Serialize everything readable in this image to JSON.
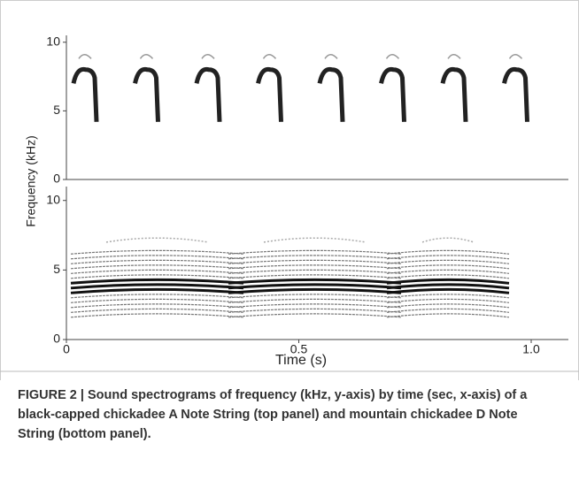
{
  "chart_data": [
    {
      "type": "spectrogram",
      "ylabel": "Frequency (kHz)",
      "ylim": [
        0,
        10.5
      ],
      "yticks": [
        0,
        5,
        10
      ]
    },
    {
      "type": "spectrogram",
      "xlabel": "Time (s)",
      "ylim": [
        0,
        11
      ],
      "yticks": [
        0,
        5,
        10
      ],
      "xlim": [
        0,
        1.08
      ],
      "xticks": [
        0,
        0.5,
        {
          "value": 1,
          "label": "1.0"
        }
      ]
    }
  ],
  "caption": "FIGURE 2 | Sound spectrograms of frequency (kHz, y-axis) by time (sec, x-axis) of a black-capped chickadee A Note String (top panel) and mountain chickadee D Note String (bottom panel)."
}
